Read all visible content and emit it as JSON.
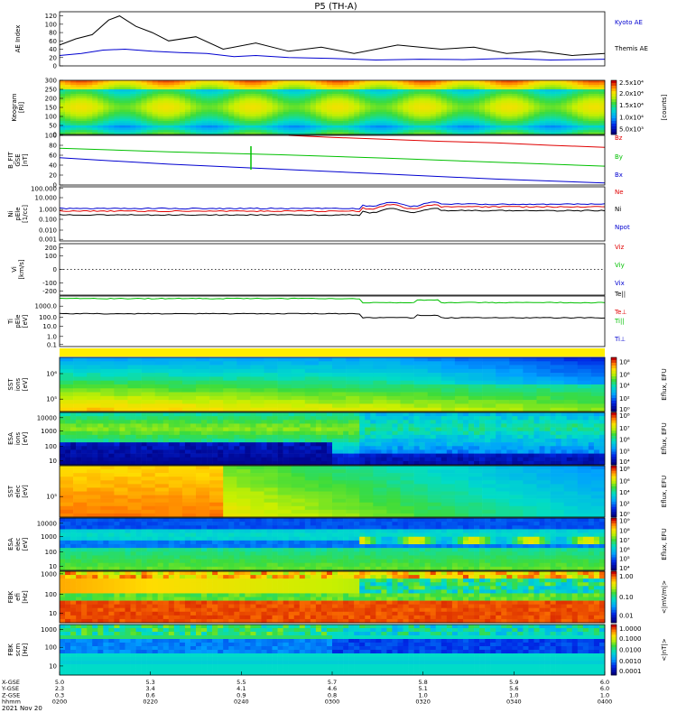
{
  "title": "P5 (TH-A)",
  "colors": {
    "black": "#000000",
    "red": "#e00000",
    "green": "#00c000",
    "blue": "#0000d0"
  },
  "chart_data": [
    {
      "name": "ae",
      "type": "line",
      "ylabel": "AE Index",
      "yticks": [
        "120",
        "100",
        "80",
        "60",
        "40",
        "20",
        "0"
      ],
      "ylim": [
        0,
        130
      ],
      "series": [
        {
          "name": "Kyoto AE",
          "color": "#0000d0",
          "legend_color": "#0000d0",
          "x": [
            0,
            0.04,
            0.08,
            0.12,
            0.17,
            0.22,
            0.27,
            0.32,
            0.36,
            0.42,
            0.5,
            0.58,
            0.66,
            0.74,
            0.82,
            0.9,
            1
          ],
          "values": [
            25,
            30,
            38,
            40,
            35,
            32,
            30,
            22,
            25,
            20,
            18,
            14,
            16,
            15,
            18,
            14,
            16
          ]
        },
        {
          "name": "Themis AE",
          "color": "#000000",
          "legend_color": "#000000",
          "x": [
            0,
            0.03,
            0.06,
            0.09,
            0.11,
            0.14,
            0.17,
            0.2,
            0.25,
            0.3,
            0.36,
            0.42,
            0.48,
            0.54,
            0.62,
            0.7,
            0.76,
            0.82,
            0.88,
            0.94,
            1
          ],
          "values": [
            50,
            65,
            75,
            110,
            120,
            95,
            80,
            60,
            70,
            40,
            55,
            35,
            45,
            30,
            50,
            40,
            45,
            30,
            35,
            25,
            30
          ]
        }
      ]
    },
    {
      "name": "keogram",
      "type": "heatmap",
      "ylabel": "Keogram",
      "yunit": "[Rl]",
      "yticks": [
        "300",
        "250",
        "200",
        "150",
        "100",
        "50",
        "0"
      ],
      "colorbar": {
        "ticks": [
          "2.5x10⁴",
          "2.0x10⁴",
          "1.5x10⁴",
          "1.0x10⁴",
          "5.0x10³"
        ],
        "label": "[counts]"
      }
    },
    {
      "name": "bfield",
      "type": "line",
      "ylabel": "B_FIT",
      "ysub": "GSE",
      "yunit": "[nT]",
      "yticks": [
        "100",
        "80",
        "60",
        "40",
        "20",
        "0"
      ],
      "ylim": [
        0,
        100
      ],
      "series": [
        {
          "name": "Bz",
          "color": "#e00000",
          "legend_color": "#e00000",
          "x": [
            0.42,
            0.5,
            0.6,
            0.7,
            0.8,
            0.9,
            1
          ],
          "values": [
            100,
            96,
            92,
            88,
            85,
            80,
            76
          ]
        },
        {
          "name": "By",
          "color": "#00c000",
          "legend_color": "#00c000",
          "x": [
            0,
            0.2,
            0.4,
            0.6,
            0.8,
            1
          ],
          "values": [
            74,
            67,
            61,
            54,
            46,
            38
          ]
        },
        {
          "name": "Bx",
          "color": "#0000d0",
          "legend_color": "#0000d0",
          "x": [
            0,
            0.2,
            0.4,
            0.6,
            0.8,
            1
          ],
          "values": [
            55,
            42,
            32,
            22,
            12,
            4
          ]
        }
      ]
    },
    {
      "name": "density",
      "type": "line",
      "ylabel": "Ni",
      "ysub": "pEle",
      "yunit": "[1/cc]",
      "yticks": [
        "100.000",
        "10.000",
        "1.000",
        "0.100",
        "0.010",
        "0.001"
      ],
      "series": [
        {
          "name": "Ne",
          "color": "#e00000",
          "legend_color": "#e00000"
        },
        {
          "name": "Ni",
          "color": "#000000",
          "legend_color": "#000000"
        },
        {
          "name": "Npot",
          "color": "#0000d0",
          "legend_color": "#0000d0"
        }
      ]
    },
    {
      "name": "velocity",
      "type": "line",
      "ylabel": "Vi",
      "yunit": "[km/s]",
      "yticks": [
        "200",
        "100",
        "0",
        "-100",
        "-200"
      ],
      "series": [
        {
          "name": "Viz",
          "color": "#e00000",
          "legend_color": "#e00000"
        },
        {
          "name": "Viy",
          "color": "#00c000",
          "legend_color": "#00c000"
        },
        {
          "name": "Vix",
          "color": "#0000d0",
          "legend_color": "#0000d0"
        }
      ]
    },
    {
      "name": "temperature",
      "type": "line",
      "ylabel": "Ti",
      "ysub": "pEle",
      "yunit": "[eV]",
      "yticks": [
        "1000.0",
        "100.0",
        "10.0",
        "1.0",
        "0.1"
      ],
      "series": [
        {
          "name": "Te||",
          "color": "#000000",
          "legend_color": "#000000"
        },
        {
          "name": "Te⊥",
          "color": "#e00000",
          "legend_color": "#e00000"
        },
        {
          "name": "Ti||",
          "color": "#00c000",
          "legend_color": "#00c000"
        },
        {
          "name": "Ti⊥",
          "color": "#0000d0",
          "legend_color": "#0000d0"
        }
      ]
    },
    {
      "name": "sst-ion",
      "type": "heatmap",
      "ylabel": "SST",
      "ysub": "ions",
      "yunit": "[eV]",
      "yticks": [
        "10⁶",
        "10⁵"
      ],
      "colorbar": {
        "ticks": [
          "10⁸",
          "10⁶",
          "10⁴",
          "10²",
          "10⁰"
        ],
        "label": "Eflux, EFU"
      }
    },
    {
      "name": "esa-ion",
      "type": "heatmap",
      "ylabel": "ESA",
      "ysub": "ions",
      "yunit": "[eV]",
      "yticks": [
        "10000",
        "1000",
        "100",
        "10"
      ],
      "colorbar": {
        "ticks": [
          "10⁸",
          "10⁷",
          "10⁶",
          "10⁵",
          "10⁴"
        ],
        "label": "Eflux, EFU"
      }
    },
    {
      "name": "sst-elec",
      "type": "heatmap",
      "ylabel": "SST",
      "ysub": "elec",
      "yunit": "[eV]",
      "yticks": [
        "10⁵"
      ],
      "colorbar": {
        "ticks": [
          "10⁸",
          "10⁶",
          "10⁴",
          "10²",
          "10⁰"
        ],
        "label": "Eflux, EFU"
      }
    },
    {
      "name": "esa-elec",
      "type": "heatmap",
      "ylabel": "ESA",
      "ysub": "elec",
      "yunit": "[eV]",
      "yticks": [
        "10000",
        "1000",
        "100",
        "10"
      ],
      "colorbar": {
        "ticks": [
          "10⁹",
          "10⁸",
          "10⁷",
          "10⁶",
          "10⁵",
          "10⁴"
        ],
        "label": "Eflux, EFU"
      }
    },
    {
      "name": "fbk-e",
      "type": "heatmap",
      "ylabel": "FBK",
      "ysub": "efi",
      "yunit": "[Hz]",
      "yticks": [
        "1000",
        "100",
        "10"
      ],
      "colorbar": {
        "ticks": [
          "1.00",
          "0.10",
          "0.01"
        ],
        "label": "<|mV/m|>"
      }
    },
    {
      "name": "fbk-b",
      "type": "heatmap",
      "ylabel": "FBK",
      "ysub": "scm",
      "yunit": "[Hz]",
      "yticks": [
        "1000",
        "100",
        "10"
      ],
      "colorbar": {
        "ticks": [
          "1.0000",
          "0.1000",
          "0.0100",
          "0.0010",
          "0.0001"
        ],
        "label": "<|nT|>"
      }
    }
  ],
  "xaxis": {
    "rows": [
      {
        "label": "X-GSE",
        "values": [
          "5.0",
          "5.3",
          "5.5",
          "5.7",
          "5.8",
          "5.9",
          "6.0"
        ]
      },
      {
        "label": "Y-GSE",
        "values": [
          "2.3",
          "3.4",
          "4.1",
          "4.6",
          "5.1",
          "5.6",
          "6.0"
        ]
      },
      {
        "label": "Z-GSE",
        "values": [
          "0.3",
          "0.6",
          "0.9",
          "0.8",
          "1.0",
          "1.0",
          "1.0"
        ]
      },
      {
        "label": "hhmm",
        "values": [
          "0200",
          "0220",
          "0240",
          "0300",
          "0320",
          "0340",
          "0400"
        ]
      }
    ],
    "date": "2021 Nov 20"
  }
}
